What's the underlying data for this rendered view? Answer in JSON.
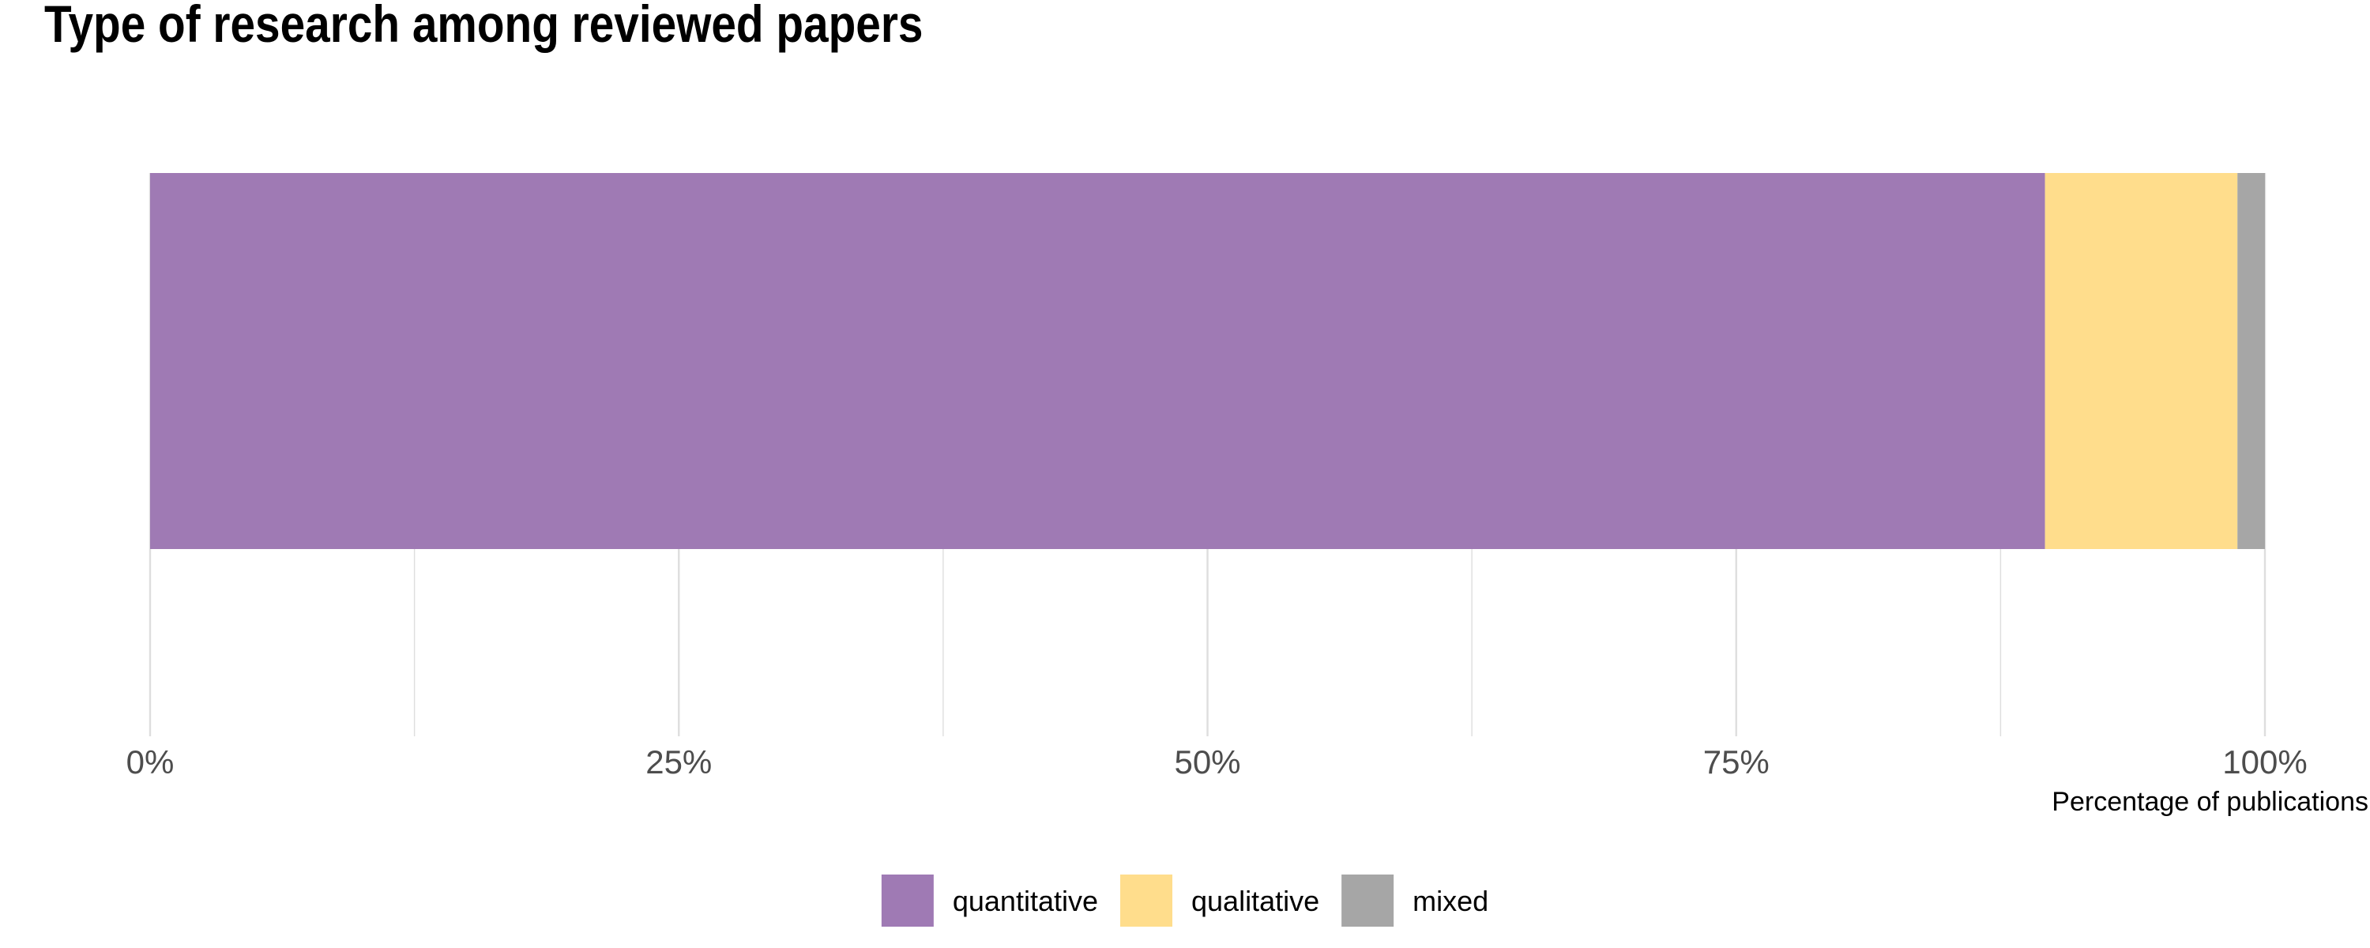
{
  "chart_data": {
    "type": "bar",
    "orientation": "horizontal",
    "stacked": true,
    "title": "Type of research among reviewed papers",
    "xlabel": "Percentage of publications",
    "ylabel": "",
    "xlim": [
      0,
      100
    ],
    "x_ticks": [
      0,
      25,
      50,
      75,
      100
    ],
    "x_tick_labels": [
      "0%",
      "25%",
      "50%",
      "75%",
      "100%"
    ],
    "grid": true,
    "legend_position": "bottom",
    "series": [
      {
        "name": "quantitative",
        "value": 89.6,
        "color": "#9F7AB4"
      },
      {
        "name": "qualitative",
        "value": 9.1,
        "color": "#FFDD8C"
      },
      {
        "name": "mixed",
        "value": 1.3,
        "color": "#A6A6A6"
      }
    ]
  }
}
